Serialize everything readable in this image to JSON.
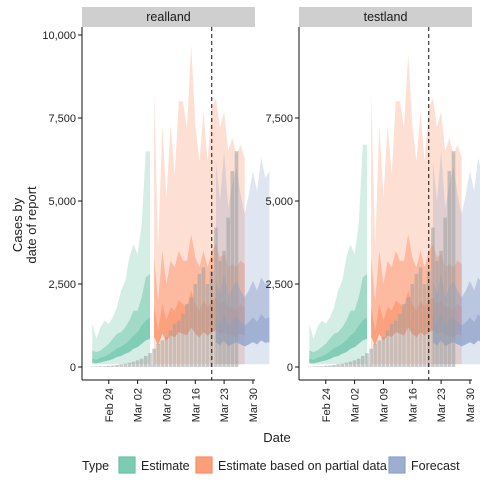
{
  "chart_data": [
    {
      "type": "area",
      "panel": "realland",
      "xlabel": "Date",
      "ylabel": "Cases by\ndate of report",
      "ylim": [
        0,
        10000
      ],
      "yticks": [
        0,
        2500,
        5000,
        7500,
        10000
      ],
      "ytick_labels": [
        "0",
        "2,500",
        "5,000",
        "7,500",
        "10,000"
      ],
      "xticks": [
        "Feb 24",
        "Mar 02",
        "Mar 09",
        "Mar 16",
        "Mar 23",
        "Mar 30"
      ],
      "x": [
        "2020-02-20",
        "2020-02-21",
        "2020-02-22",
        "2020-02-23",
        "2020-02-24",
        "2020-02-25",
        "2020-02-26",
        "2020-02-27",
        "2020-02-28",
        "2020-02-29",
        "2020-03-01",
        "2020-03-02",
        "2020-03-03",
        "2020-03-04",
        "2020-03-05",
        "2020-03-06",
        "2020-03-07",
        "2020-03-08",
        "2020-03-09",
        "2020-03-10",
        "2020-03-11",
        "2020-03-12",
        "2020-03-13",
        "2020-03-14",
        "2020-03-15",
        "2020-03-16",
        "2020-03-17",
        "2020-03-18",
        "2020-03-19",
        "2020-03-20",
        "2020-03-21",
        "2020-03-22",
        "2020-03-23",
        "2020-03-24",
        "2020-03-25",
        "2020-03-26",
        "2020-03-27",
        "2020-03-28",
        "2020-03-29",
        "2020-03-30"
      ],
      "reported_cases": [
        12,
        15,
        20,
        25,
        35,
        45,
        60,
        80,
        100,
        130,
        160,
        200,
        250,
        330,
        420,
        550,
        700,
        800,
        900,
        1100,
        1300,
        1400,
        1600,
        1900,
        2100,
        2500,
        2800,
        3000,
        2500,
        2900,
        4200,
        3200,
        3500,
        4500,
        5900,
        6500,
        null,
        null,
        null,
        null
      ],
      "series": [
        {
          "name": "Estimate",
          "start": "2020-02-20",
          "upper90": [
            1300,
            850,
            1200,
            1400,
            1300,
            1500,
            1800,
            2300,
            2600,
            3300,
            3700,
            3400,
            4300,
            6500,
            6500
          ],
          "upper50": [
            500,
            450,
            500,
            600,
            700,
            850,
            1000,
            1050,
            1200,
            1400,
            1700,
            1700,
            2100,
            2700,
            2800
          ],
          "median": [
            250,
            220,
            280,
            320,
            380,
            470,
            560,
            620,
            700,
            800,
            950,
            1050,
            1250,
            1400,
            1500
          ],
          "lower50": [
            120,
            110,
            140,
            170,
            200,
            240,
            300,
            330,
            400,
            450,
            550,
            600,
            700,
            800,
            850
          ]
        },
        {
          "name": "Estimate based on partial data",
          "start": "2020-03-06",
          "upper90": [
            8300,
            3600,
            7300,
            5100,
            7300,
            5800,
            8000,
            8000,
            7200,
            9700,
            7300,
            6200,
            7700,
            6200,
            7800,
            8100,
            7200,
            7700,
            6500,
            6900,
            6400,
            6700,
            6300
          ],
          "upper50": [
            3300,
            2000,
            3500,
            2500,
            3200,
            3000,
            3500,
            3200,
            3200,
            4000,
            3300,
            3000,
            3500,
            3000,
            3500,
            3700,
            3300,
            3400,
            3000,
            3100,
            3000,
            3200,
            3100
          ],
          "median": [
            1800,
            1100,
            1900,
            1400,
            1800,
            1700,
            2000,
            1900,
            1800,
            2300,
            1900,
            1700,
            2000,
            1800,
            2000,
            2100,
            1900,
            2000,
            1800,
            1800,
            1700,
            1900,
            1800
          ],
          "lower50": [
            900,
            650,
            1000,
            800,
            950,
            900,
            1050,
            1000,
            950,
            1200,
            1000,
            900,
            1050,
            950,
            1050,
            1100,
            1000,
            1050,
            950,
            950,
            900,
            1000,
            950
          ]
        },
        {
          "name": "Forecast",
          "start": "2020-03-21",
          "upper90": [
            6200,
            5000,
            6500,
            4800,
            5500,
            6000,
            5200,
            4600,
            5200,
            5900,
            5300,
            6300,
            5700,
            5900
          ],
          "upper50": [
            2600,
            2200,
            2800,
            2100,
            2400,
            2600,
            2300,
            2100,
            2300,
            2600,
            2300,
            2700,
            2500,
            2600
          ],
          "median": [
            1500,
            1300,
            1600,
            1250,
            1400,
            1500,
            1350,
            1250,
            1350,
            1500,
            1350,
            1600,
            1450,
            1500
          ],
          "lower50": [
            750,
            650,
            800,
            620,
            700,
            750,
            680,
            620,
            680,
            750,
            680,
            800,
            730,
            750
          ]
        }
      ],
      "vline": "2020-03-20"
    },
    {
      "type": "area",
      "panel": "testland",
      "xlabel": "Date",
      "ylabel": "Cases by\ndate of report",
      "ylim": [
        0,
        10000
      ],
      "yticks": [
        0,
        2500,
        5000,
        7500
      ],
      "ytick_labels": [
        "0",
        "2,500",
        "5,000",
        "7,500"
      ],
      "xticks": [
        "Feb 24",
        "Mar 02",
        "Mar 09",
        "Mar 16",
        "Mar 23",
        "Mar 30"
      ],
      "x": [
        "2020-02-20",
        "2020-02-21",
        "2020-02-22",
        "2020-02-23",
        "2020-02-24",
        "2020-02-25",
        "2020-02-26",
        "2020-02-27",
        "2020-02-28",
        "2020-02-29",
        "2020-03-01",
        "2020-03-02",
        "2020-03-03",
        "2020-03-04",
        "2020-03-05",
        "2020-03-06",
        "2020-03-07",
        "2020-03-08",
        "2020-03-09",
        "2020-03-10",
        "2020-03-11",
        "2020-03-12",
        "2020-03-13",
        "2020-03-14",
        "2020-03-15",
        "2020-03-16",
        "2020-03-17",
        "2020-03-18",
        "2020-03-19",
        "2020-03-20",
        "2020-03-21",
        "2020-03-22",
        "2020-03-23",
        "2020-03-24",
        "2020-03-25",
        "2020-03-26",
        "2020-03-27",
        "2020-03-28",
        "2020-03-29",
        "2020-03-30"
      ],
      "reported_cases": [
        12,
        15,
        20,
        25,
        35,
        45,
        60,
        80,
        100,
        130,
        160,
        200,
        250,
        330,
        420,
        550,
        700,
        800,
        900,
        1100,
        1300,
        1400,
        1600,
        1900,
        2100,
        2500,
        2800,
        3000,
        2500,
        2900,
        4200,
        3200,
        3500,
        4500,
        5900,
        6500,
        null,
        null,
        null,
        null
      ],
      "series": [
        {
          "name": "Estimate",
          "start": "2020-02-20",
          "upper90": [
            1300,
            850,
            1200,
            1400,
            1300,
            1500,
            1800,
            2300,
            2600,
            3300,
            3700,
            3400,
            4300,
            6700,
            6700
          ],
          "upper50": [
            500,
            450,
            500,
            600,
            700,
            850,
            1000,
            1050,
            1200,
            1400,
            1700,
            1700,
            2100,
            2700,
            2800
          ],
          "median": [
            250,
            220,
            280,
            320,
            380,
            470,
            560,
            620,
            700,
            800,
            950,
            1050,
            1250,
            1400,
            1500
          ],
          "lower50": [
            120,
            110,
            140,
            170,
            200,
            240,
            300,
            330,
            400,
            450,
            550,
            600,
            700,
            800,
            850
          ]
        },
        {
          "name": "Estimate based on partial data",
          "start": "2020-03-06",
          "upper90": [
            8300,
            3600,
            7300,
            5100,
            7300,
            5800,
            8000,
            8000,
            7200,
            9400,
            7300,
            6200,
            7700,
            6200,
            7800,
            8100,
            7200,
            7700,
            6500,
            6900,
            6400,
            6700,
            6300
          ],
          "upper50": [
            3300,
            2000,
            3500,
            2500,
            3200,
            3000,
            3500,
            3200,
            3200,
            4000,
            3300,
            3000,
            3500,
            3000,
            3500,
            3700,
            3300,
            3400,
            3000,
            3100,
            3000,
            3200,
            3100
          ],
          "median": [
            1800,
            1100,
            1900,
            1400,
            1800,
            1700,
            2000,
            1900,
            1800,
            2300,
            1900,
            1700,
            2000,
            1800,
            2000,
            2100,
            1900,
            2000,
            1800,
            1800,
            1700,
            1900,
            1800
          ],
          "lower50": [
            900,
            650,
            1000,
            800,
            950,
            900,
            1050,
            1000,
            950,
            1200,
            1000,
            900,
            1050,
            950,
            1050,
            1100,
            1000,
            1050,
            950,
            950,
            900,
            1000,
            950
          ]
        },
        {
          "name": "Forecast",
          "start": "2020-03-21",
          "upper90": [
            6200,
            5000,
            6500,
            4800,
            5500,
            6000,
            5200,
            4600,
            5200,
            5900,
            5300,
            6300,
            5700,
            5900
          ],
          "upper50": [
            2600,
            2200,
            2800,
            2100,
            2400,
            2600,
            2300,
            2100,
            2300,
            2600,
            2300,
            2700,
            2500,
            2600
          ],
          "median": [
            1500,
            1300,
            1600,
            1250,
            1400,
            1500,
            1350,
            1250,
            1350,
            1500,
            1350,
            1600,
            1450,
            1500
          ],
          "lower50": [
            750,
            650,
            800,
            620,
            700,
            750,
            680,
            620,
            680,
            750,
            680,
            800,
            730,
            750
          ]
        }
      ],
      "vline": "2020-03-20"
    }
  ],
  "legend": {
    "title": "Type",
    "items": [
      {
        "label": "Estimate",
        "color": "#66c2a5"
      },
      {
        "label": "Estimate based on partial data",
        "color": "#fc8d62"
      },
      {
        "label": "Forecast",
        "color": "#8da0cb"
      }
    ]
  },
  "axis_title": {
    "x": "Date",
    "y1": "Cases by",
    "y2": "date of report"
  }
}
